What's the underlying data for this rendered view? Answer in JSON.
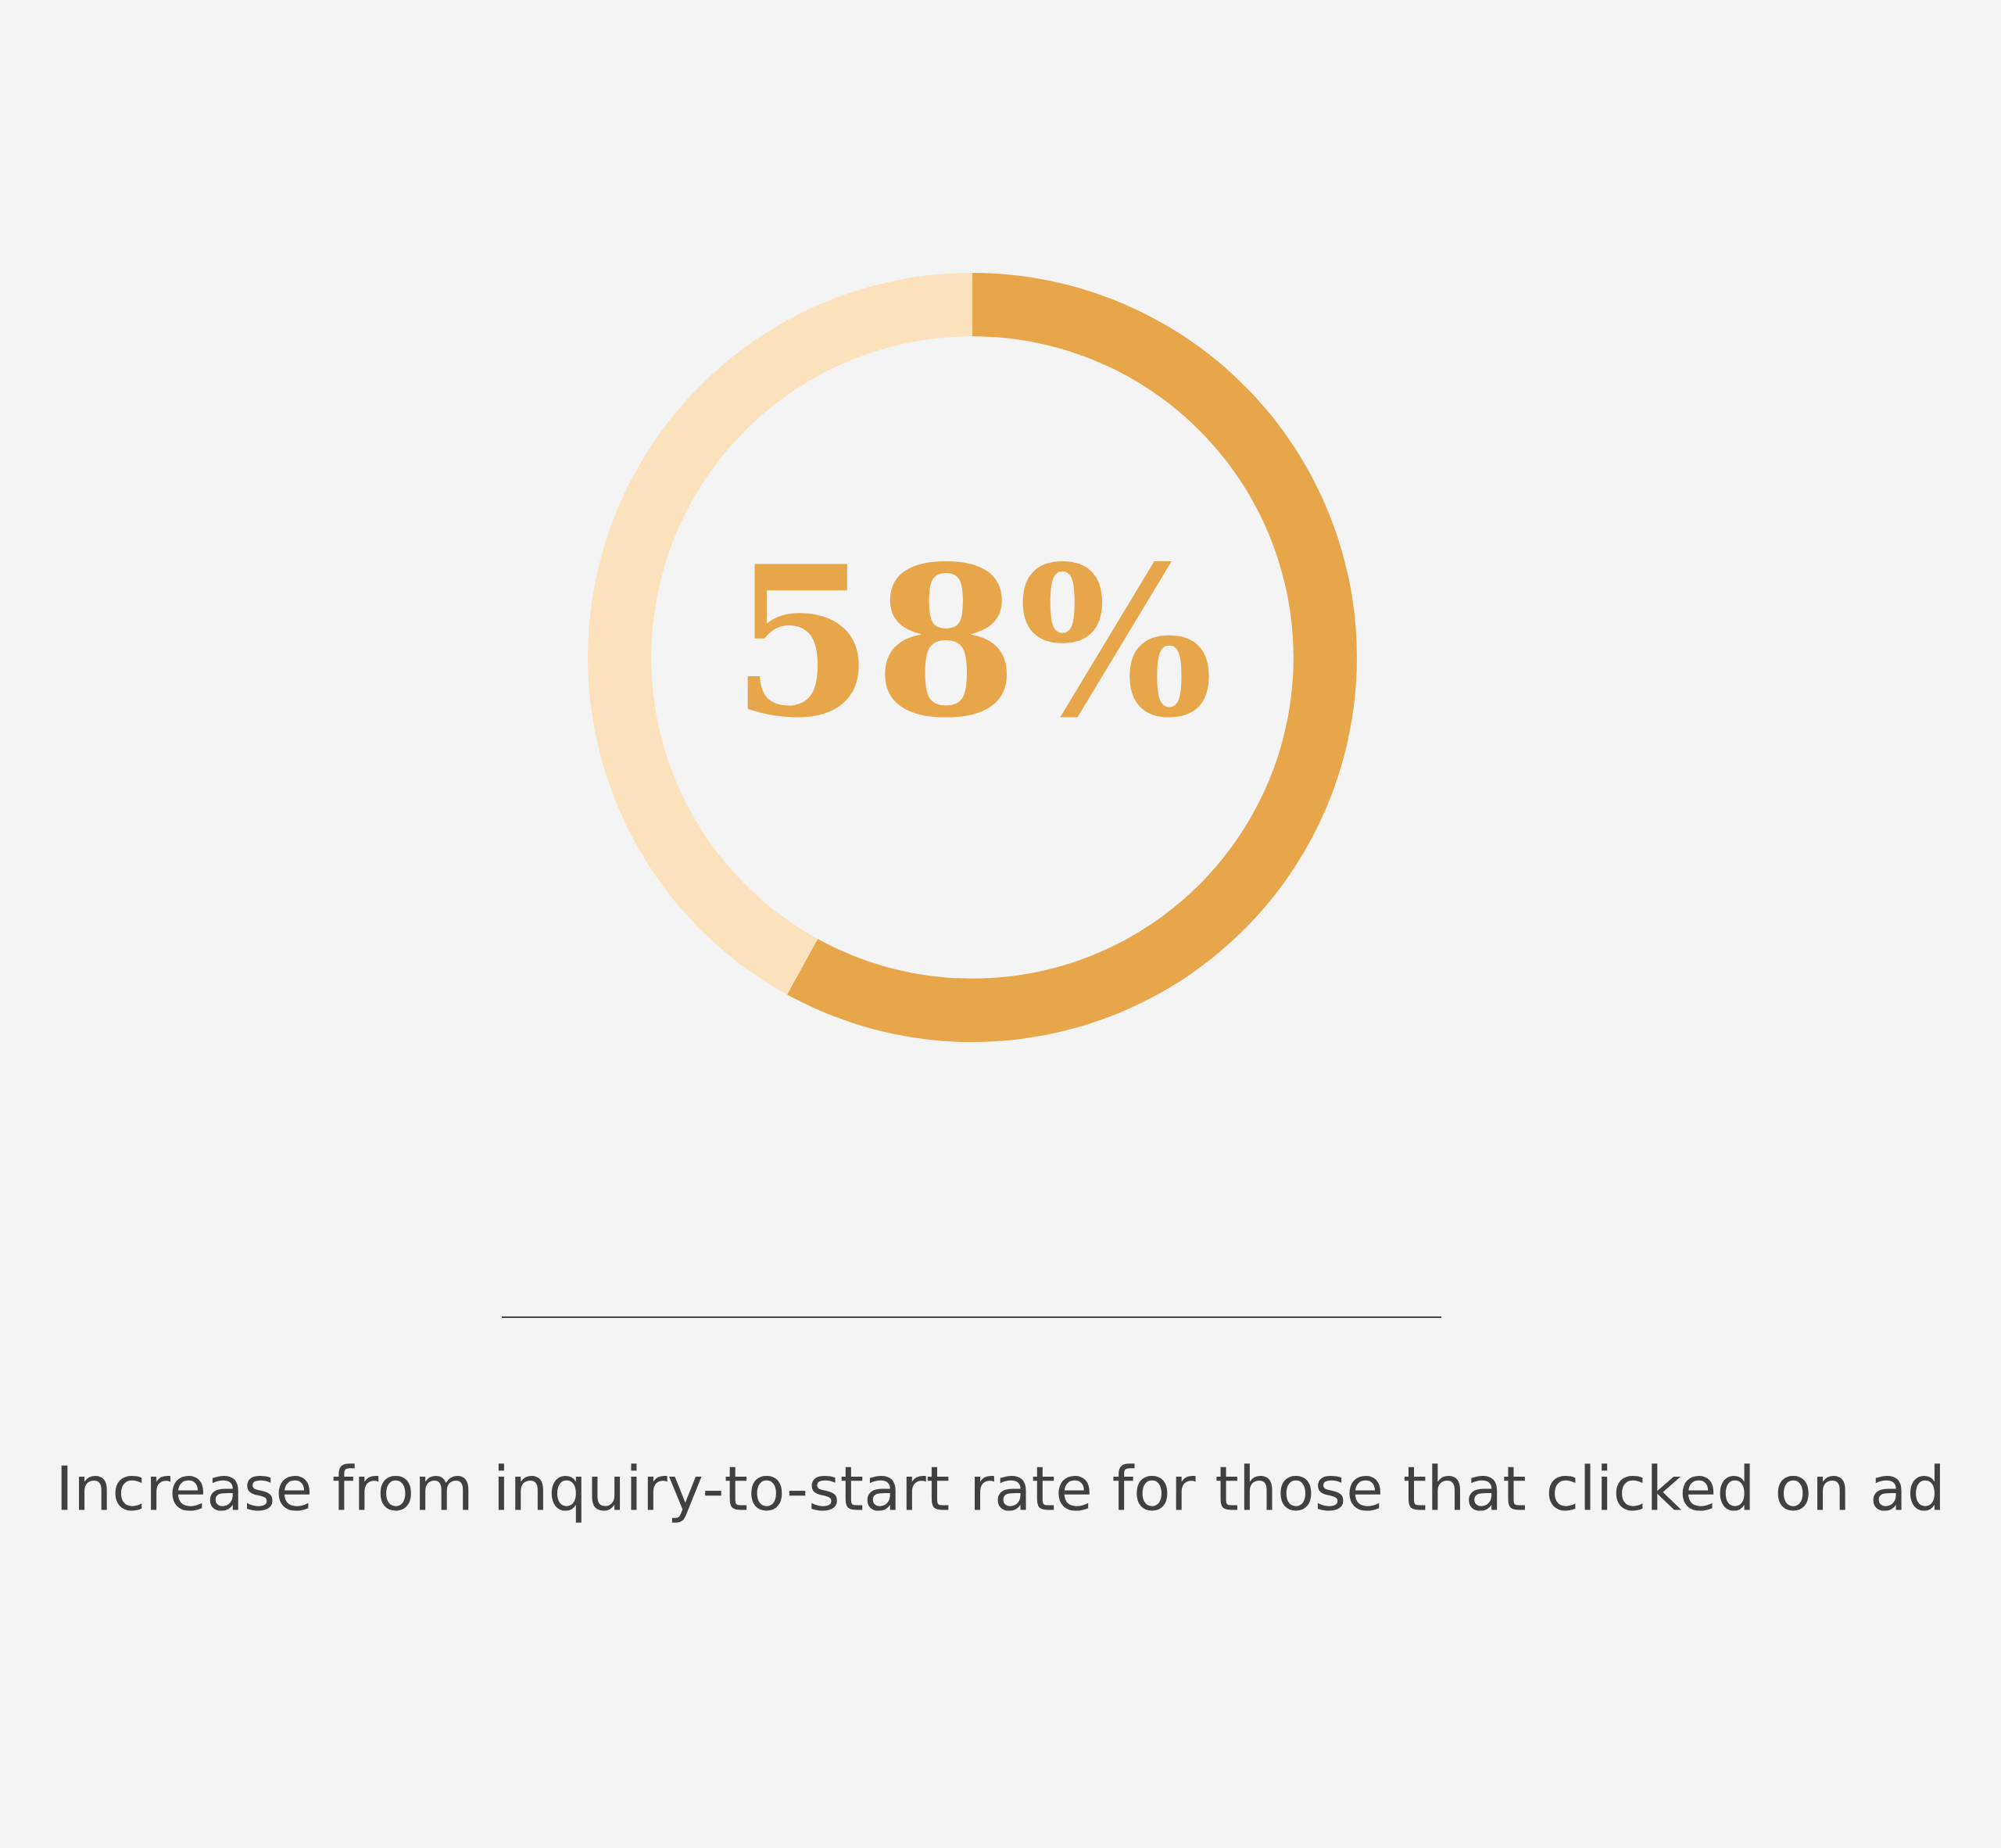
{
  "chart_data": {
    "type": "donut",
    "categories": [
      null,
      null
    ],
    "values": [
      58,
      42
    ],
    "colors": [
      "#e8a64b",
      "#fbe2bd"
    ],
    "value_labels": [
      "58%",
      null
    ],
    "annotations": [
      "Increase from inquiry-to-start rate for those that clicked on ad"
    ]
  }
}
